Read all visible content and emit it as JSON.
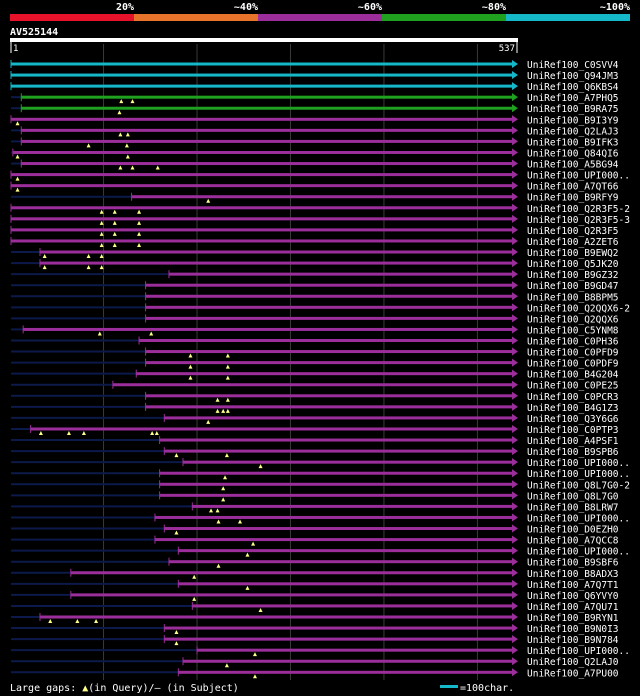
{
  "legend": {
    "segments": [
      {
        "label": "20%",
        "color": "#e8132b"
      },
      {
        "label": "~40%",
        "color": "#e8732b"
      },
      {
        "label": "~60%",
        "color": "#9b2e9b"
      },
      {
        "label": "~80%",
        "color": "#1fa01f"
      },
      {
        "label": "~100%",
        "color": "#14b8c8"
      }
    ]
  },
  "query": {
    "id": "AV525144",
    "start_label": "1",
    "end_label": "537",
    "length": 537
  },
  "colors": {
    "background": "#000000",
    "grid": "#3a3a3a",
    "scale_bar": "#ffffff",
    "unaligned": "#0b1a4a",
    "gap_marker": "#ffff88"
  },
  "hits": [
    {
      "name": "UniRef100_C0SVV4",
      "identity": "~100%",
      "qs": 1,
      "qe": 537,
      "gaps": []
    },
    {
      "name": "UniRef100_Q94JM3",
      "identity": "~100%",
      "qs": 1,
      "qe": 537,
      "gaps": []
    },
    {
      "name": "UniRef100_Q6KBS4",
      "identity": "~100%",
      "qs": 1,
      "qe": 537,
      "gaps": []
    },
    {
      "name": "UniRef100_A7PHQ5",
      "identity": "~80%",
      "qs": 12,
      "qe": 537,
      "gaps": [
        119,
        131
      ]
    },
    {
      "name": "UniRef100_B9RA75",
      "identity": "~80%",
      "qs": 12,
      "qe": 537,
      "gaps": [
        117
      ]
    },
    {
      "name": "UniRef100_B9I3Y9",
      "identity": "~60%",
      "qs": 1,
      "qe": 537,
      "gaps": [
        8
      ]
    },
    {
      "name": "UniRef100_Q2LAJ3",
      "identity": "~60%",
      "qs": 12,
      "qe": 537,
      "gaps": [
        118,
        126
      ]
    },
    {
      "name": "UniRef100_B9IFK3",
      "identity": "~60%",
      "qs": 12,
      "qe": 537,
      "gaps": [
        84,
        125
      ]
    },
    {
      "name": "UniRef100_Q84QI6",
      "identity": "~60%",
      "qs": 3,
      "qe": 537,
      "gaps": [
        8,
        126
      ]
    },
    {
      "name": "UniRef100_A5BG94",
      "identity": "~60%",
      "qs": 12,
      "qe": 537,
      "gaps": [
        118,
        131,
        158
      ]
    },
    {
      "name": "UniRef100_UPI000..",
      "identity": "~60%",
      "qs": 1,
      "qe": 537,
      "gaps": [
        8
      ]
    },
    {
      "name": "UniRef100_A7QT66",
      "identity": "~60%",
      "qs": 1,
      "qe": 537,
      "gaps": [
        8
      ]
    },
    {
      "name": "UniRef100_B9RFY9",
      "identity": "~60%",
      "qs": 130,
      "qe": 537,
      "gaps": [
        212
      ]
    },
    {
      "name": "UniRef100_Q2R3F5-2",
      "identity": "~60%",
      "qs": 1,
      "qe": 537,
      "gaps": [
        98,
        112,
        138
      ]
    },
    {
      "name": "UniRef100_Q2R3F5-3",
      "identity": "~60%",
      "qs": 1,
      "qe": 537,
      "gaps": [
        98,
        112,
        138
      ]
    },
    {
      "name": "UniRef100_Q2R3F5",
      "identity": "~60%",
      "qs": 1,
      "qe": 537,
      "gaps": [
        98,
        112,
        138
      ]
    },
    {
      "name": "UniRef100_A2ZET6",
      "identity": "~60%",
      "qs": 1,
      "qe": 537,
      "gaps": [
        98,
        112,
        138
      ]
    },
    {
      "name": "UniRef100_B9EWQ2",
      "identity": "~60%",
      "qs": 32,
      "qe": 537,
      "gaps": [
        37,
        84,
        98
      ]
    },
    {
      "name": "UniRef100_Q5JK20",
      "identity": "~60%",
      "qs": 32,
      "qe": 537,
      "gaps": [
        37,
        84,
        98
      ]
    },
    {
      "name": "UniRef100_B9GZ32",
      "identity": "~60%",
      "qs": 170,
      "qe": 537,
      "gaps": []
    },
    {
      "name": "UniRef100_B9GD47",
      "identity": "~60%",
      "qs": 145,
      "qe": 537,
      "gaps": []
    },
    {
      "name": "UniRef100_B8BPM5",
      "identity": "~60%",
      "qs": 145,
      "qe": 537,
      "gaps": []
    },
    {
      "name": "UniRef100_Q2QQX6-2",
      "identity": "~60%",
      "qs": 145,
      "qe": 537,
      "gaps": []
    },
    {
      "name": "UniRef100_Q2QQX6",
      "identity": "~60%",
      "qs": 145,
      "qe": 537,
      "gaps": []
    },
    {
      "name": "UniRef100_C5YNM8",
      "identity": "~60%",
      "qs": 14,
      "qe": 537,
      "gaps": [
        96,
        151
      ]
    },
    {
      "name": "UniRef100_C0PH36",
      "identity": "~60%",
      "qs": 138,
      "qe": 537,
      "gaps": []
    },
    {
      "name": "UniRef100_C0PFD9",
      "identity": "~60%",
      "qs": 145,
      "qe": 537,
      "gaps": [
        193,
        233
      ]
    },
    {
      "name": "UniRef100_C0PDF9",
      "identity": "~60%",
      "qs": 145,
      "qe": 537,
      "gaps": [
        193,
        233
      ]
    },
    {
      "name": "UniRef100_B4G204",
      "identity": "~60%",
      "qs": 135,
      "qe": 537,
      "gaps": [
        193,
        233
      ]
    },
    {
      "name": "UniRef100_C0PE25",
      "identity": "~60%",
      "qs": 110,
      "qe": 537,
      "gaps": []
    },
    {
      "name": "UniRef100_C0PCR3",
      "identity": "~60%",
      "qs": 145,
      "qe": 537,
      "gaps": [
        222,
        233
      ]
    },
    {
      "name": "UniRef100_B4G1Z3",
      "identity": "~60%",
      "qs": 145,
      "qe": 537,
      "gaps": [
        222,
        228,
        233
      ]
    },
    {
      "name": "UniRef100_Q3Y6G6",
      "identity": "~60%",
      "qs": 165,
      "qe": 537,
      "gaps": [
        212
      ]
    },
    {
      "name": "UniRef100_C0PTP3",
      "identity": "~60%",
      "qs": 22,
      "qe": 537,
      "gaps": [
        33,
        63,
        79,
        152,
        157
      ]
    },
    {
      "name": "UniRef100_A4PSF1",
      "identity": "~60%",
      "qs": 160,
      "qe": 537,
      "gaps": []
    },
    {
      "name": "UniRef100_B9SPB6",
      "identity": "~60%",
      "qs": 165,
      "qe": 537,
      "gaps": [
        178,
        232
      ]
    },
    {
      "name": "UniRef100_UPI000..",
      "identity": "~60%",
      "qs": 185,
      "qe": 537,
      "gaps": [
        268
      ]
    },
    {
      "name": "UniRef100_UPI000..",
      "identity": "~60%",
      "qs": 160,
      "qe": 537,
      "gaps": [
        230
      ]
    },
    {
      "name": "UniRef100_Q8L7G0-2",
      "identity": "~60%",
      "qs": 160,
      "qe": 537,
      "gaps": [
        228
      ]
    },
    {
      "name": "UniRef100_Q8L7G0",
      "identity": "~60%",
      "qs": 160,
      "qe": 537,
      "gaps": [
        228
      ]
    },
    {
      "name": "UniRef100_B8LRW7",
      "identity": "~60%",
      "qs": 195,
      "qe": 537,
      "gaps": [
        215,
        222
      ]
    },
    {
      "name": "UniRef100_UPI000..",
      "identity": "~60%",
      "qs": 155,
      "qe": 537,
      "gaps": [
        223,
        246
      ]
    },
    {
      "name": "UniRef100_D0EZH0",
      "identity": "~60%",
      "qs": 165,
      "qe": 537,
      "gaps": [
        178
      ]
    },
    {
      "name": "UniRef100_A7QCC8",
      "identity": "~60%",
      "qs": 155,
      "qe": 537,
      "gaps": [
        260
      ]
    },
    {
      "name": "UniRef100_UPI000..",
      "identity": "~60%",
      "qs": 180,
      "qe": 537,
      "gaps": [
        254
      ]
    },
    {
      "name": "UniRef100_B9SBF6",
      "identity": "~60%",
      "qs": 170,
      "qe": 537,
      "gaps": [
        223
      ]
    },
    {
      "name": "UniRef100_B8ADX3",
      "identity": "~60%",
      "qs": 65,
      "qe": 537,
      "gaps": [
        197
      ]
    },
    {
      "name": "UniRef100_A7Q7T1",
      "identity": "~60%",
      "qs": 180,
      "qe": 537,
      "gaps": [
        254
      ]
    },
    {
      "name": "UniRef100_Q6YVY0",
      "identity": "~60%",
      "qs": 65,
      "qe": 537,
      "gaps": [
        197
      ]
    },
    {
      "name": "UniRef100_A7QU71",
      "identity": "~60%",
      "qs": 195,
      "qe": 537,
      "gaps": [
        268
      ]
    },
    {
      "name": "UniRef100_B9RYN1",
      "identity": "~60%",
      "qs": 32,
      "qe": 537,
      "gaps": [
        43,
        72,
        92
      ]
    },
    {
      "name": "UniRef100_B9N0I3",
      "identity": "~60%",
      "qs": 165,
      "qe": 537,
      "gaps": [
        178
      ]
    },
    {
      "name": "UniRef100_B9N784",
      "identity": "~60%",
      "qs": 165,
      "qe": 537,
      "gaps": [
        178
      ]
    },
    {
      "name": "UniRef100_UPI000..",
      "identity": "~60%",
      "qs": 200,
      "qe": 537,
      "gaps": [
        262
      ]
    },
    {
      "name": "UniRef100_Q2LAJ0",
      "identity": "~60%",
      "qs": 185,
      "qe": 537,
      "gaps": [
        232
      ]
    },
    {
      "name": "UniRef100_A7PU00",
      "identity": "~60%",
      "qs": 180,
      "qe": 537,
      "gaps": [
        262
      ]
    }
  ],
  "footer": {
    "gaps_label": "Large gaps: ",
    "gaps_query": "(in Query)/",
    "gaps_subject": "– (in Subject)",
    "scale_label": "=100char."
  }
}
